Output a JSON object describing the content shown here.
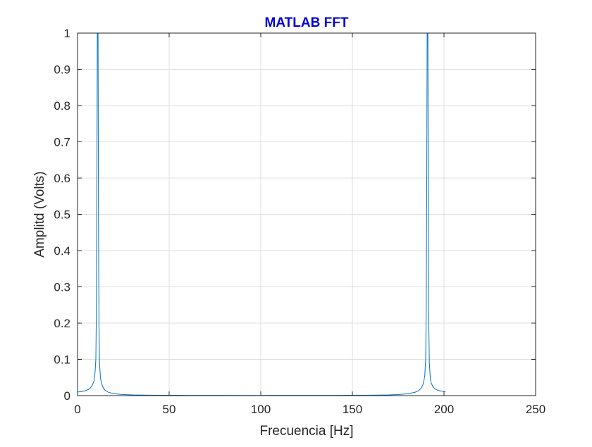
{
  "chart_data": {
    "type": "line",
    "title": "MATLAB FFT",
    "xlabel": "Frecuencia [Hz]",
    "ylabel": "Amplitd (Volts)",
    "xlim": [
      0,
      250
    ],
    "ylim": [
      0,
      1
    ],
    "xticks": [
      0,
      50,
      100,
      150,
      200,
      250
    ],
    "yticks": [
      0,
      0.1,
      0.2,
      0.3,
      0.4,
      0.5,
      0.6,
      0.7,
      0.8,
      0.9,
      1
    ],
    "xtick_labels": [
      "0",
      "50",
      "100",
      "150",
      "200",
      "250"
    ],
    "ytick_labels": [
      "0",
      "0.1",
      "0.2",
      "0.3",
      "0.4",
      "0.5",
      "0.6",
      "0.7",
      "0.8",
      "0.9",
      "1"
    ],
    "grid": true,
    "line_color": "#0072bd",
    "title_color": "#0000d8",
    "series": [
      {
        "x": [
          0,
          2,
          4,
          6,
          7,
          8,
          9,
          9.5,
          10,
          10.3,
          10.6,
          10.8,
          11,
          11.2,
          11.4,
          11.7,
          12,
          12.5,
          13,
          14,
          15,
          17,
          20,
          25,
          30,
          40,
          50,
          60,
          80,
          100,
          120,
          140,
          150,
          160,
          170,
          175,
          180,
          184,
          186,
          187.5,
          188.5,
          189,
          189.5,
          190,
          190.3,
          190.6,
          190.8,
          191,
          191.2,
          191.4,
          191.7,
          192,
          192.5,
          193,
          194,
          195,
          196,
          197,
          198,
          199,
          200,
          200.8
        ],
        "y": [
          0.01,
          0.011,
          0.013,
          0.017,
          0.021,
          0.028,
          0.04,
          0.06,
          0.1,
          0.25,
          0.6,
          1.0,
          1.0,
          1.0,
          0.55,
          0.2,
          0.09,
          0.05,
          0.035,
          0.022,
          0.015,
          0.009,
          0.005,
          0.003,
          0.002,
          0.0012,
          0.001,
          0.0008,
          0.0007,
          0.0006,
          0.0007,
          0.0008,
          0.001,
          0.0013,
          0.002,
          0.003,
          0.005,
          0.009,
          0.013,
          0.02,
          0.03,
          0.04,
          0.055,
          0.1,
          0.25,
          0.6,
          1.0,
          1.0,
          1.0,
          0.55,
          0.2,
          0.09,
          0.05,
          0.035,
          0.024,
          0.019,
          0.016,
          0.014,
          0.013,
          0.012,
          0.011,
          0.011
        ]
      }
    ]
  }
}
